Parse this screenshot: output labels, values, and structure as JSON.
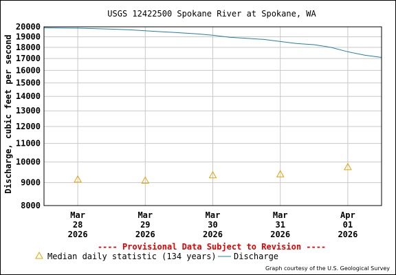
{
  "chart_data": {
    "type": "line",
    "title": "USGS 12422500 Spokane River at Spokane, WA",
    "ylabel": "Discharge, cubic feet per second",
    "xlabel": "",
    "y_scale": "log",
    "ylim": [
      8000,
      20000
    ],
    "y_ticks": [
      "20000",
      "19000",
      "18000",
      "17000",
      "16000",
      "15000",
      "14000",
      "13000",
      "12000",
      "11000",
      "10000",
      "9000",
      "8000"
    ],
    "x_range": [
      "2026-03-27T12:00",
      "2026-04-01T12:00"
    ],
    "x_ticks": [
      {
        "month": "Mar",
        "day": "28",
        "year": "2026",
        "at": "2026-03-28T00:00"
      },
      {
        "month": "Mar",
        "day": "29",
        "year": "2026",
        "at": "2026-03-29T00:00"
      },
      {
        "month": "Mar",
        "day": "30",
        "year": "2026",
        "at": "2026-03-30T00:00"
      },
      {
        "month": "Mar",
        "day": "31",
        "year": "2026",
        "at": "2026-03-31T00:00"
      },
      {
        "month": "Apr",
        "day": "01",
        "year": "2026",
        "at": "2026-04-01T00:00"
      }
    ],
    "grid": true,
    "notice": "---- Provisional Data Subject to Revision ----",
    "credit": "Graph courtesy of the U.S. Geological Survey",
    "series": [
      {
        "name": "Discharge",
        "kind": "line",
        "color": "#1f7fa6",
        "points": [
          [
            "2026-03-27T12:00",
            19900
          ],
          [
            "2026-03-27T18:00",
            19880
          ],
          [
            "2026-03-28T00:00",
            19860
          ],
          [
            "2026-03-28T06:00",
            19820
          ],
          [
            "2026-03-28T12:00",
            19760
          ],
          [
            "2026-03-28T18:00",
            19700
          ],
          [
            "2026-03-29T00:00",
            19600
          ],
          [
            "2026-03-29T06:00",
            19500
          ],
          [
            "2026-03-29T12:00",
            19400
          ],
          [
            "2026-03-29T18:00",
            19300
          ],
          [
            "2026-03-30T00:00",
            19150
          ],
          [
            "2026-03-30T06:00",
            18950
          ],
          [
            "2026-03-30T12:00",
            18850
          ],
          [
            "2026-03-30T18:00",
            18750
          ],
          [
            "2026-03-31T00:00",
            18550
          ],
          [
            "2026-03-31T06:00",
            18350
          ],
          [
            "2026-03-31T12:00",
            18250
          ],
          [
            "2026-03-31T18:00",
            18000
          ],
          [
            "2026-04-01T00:00",
            17600
          ],
          [
            "2026-04-01T06:00",
            17300
          ],
          [
            "2026-04-01T12:00",
            17100
          ]
        ]
      },
      {
        "name": "Median daily statistic (134 years)",
        "kind": "marker",
        "marker": "triangle",
        "color": "#e8a000",
        "points": [
          [
            "2026-03-28T00:00",
            9150
          ],
          [
            "2026-03-29T00:00",
            9100
          ],
          [
            "2026-03-30T00:00",
            9350
          ],
          [
            "2026-03-31T00:00",
            9400
          ],
          [
            "2026-04-01T00:00",
            9750
          ]
        ]
      }
    ]
  }
}
